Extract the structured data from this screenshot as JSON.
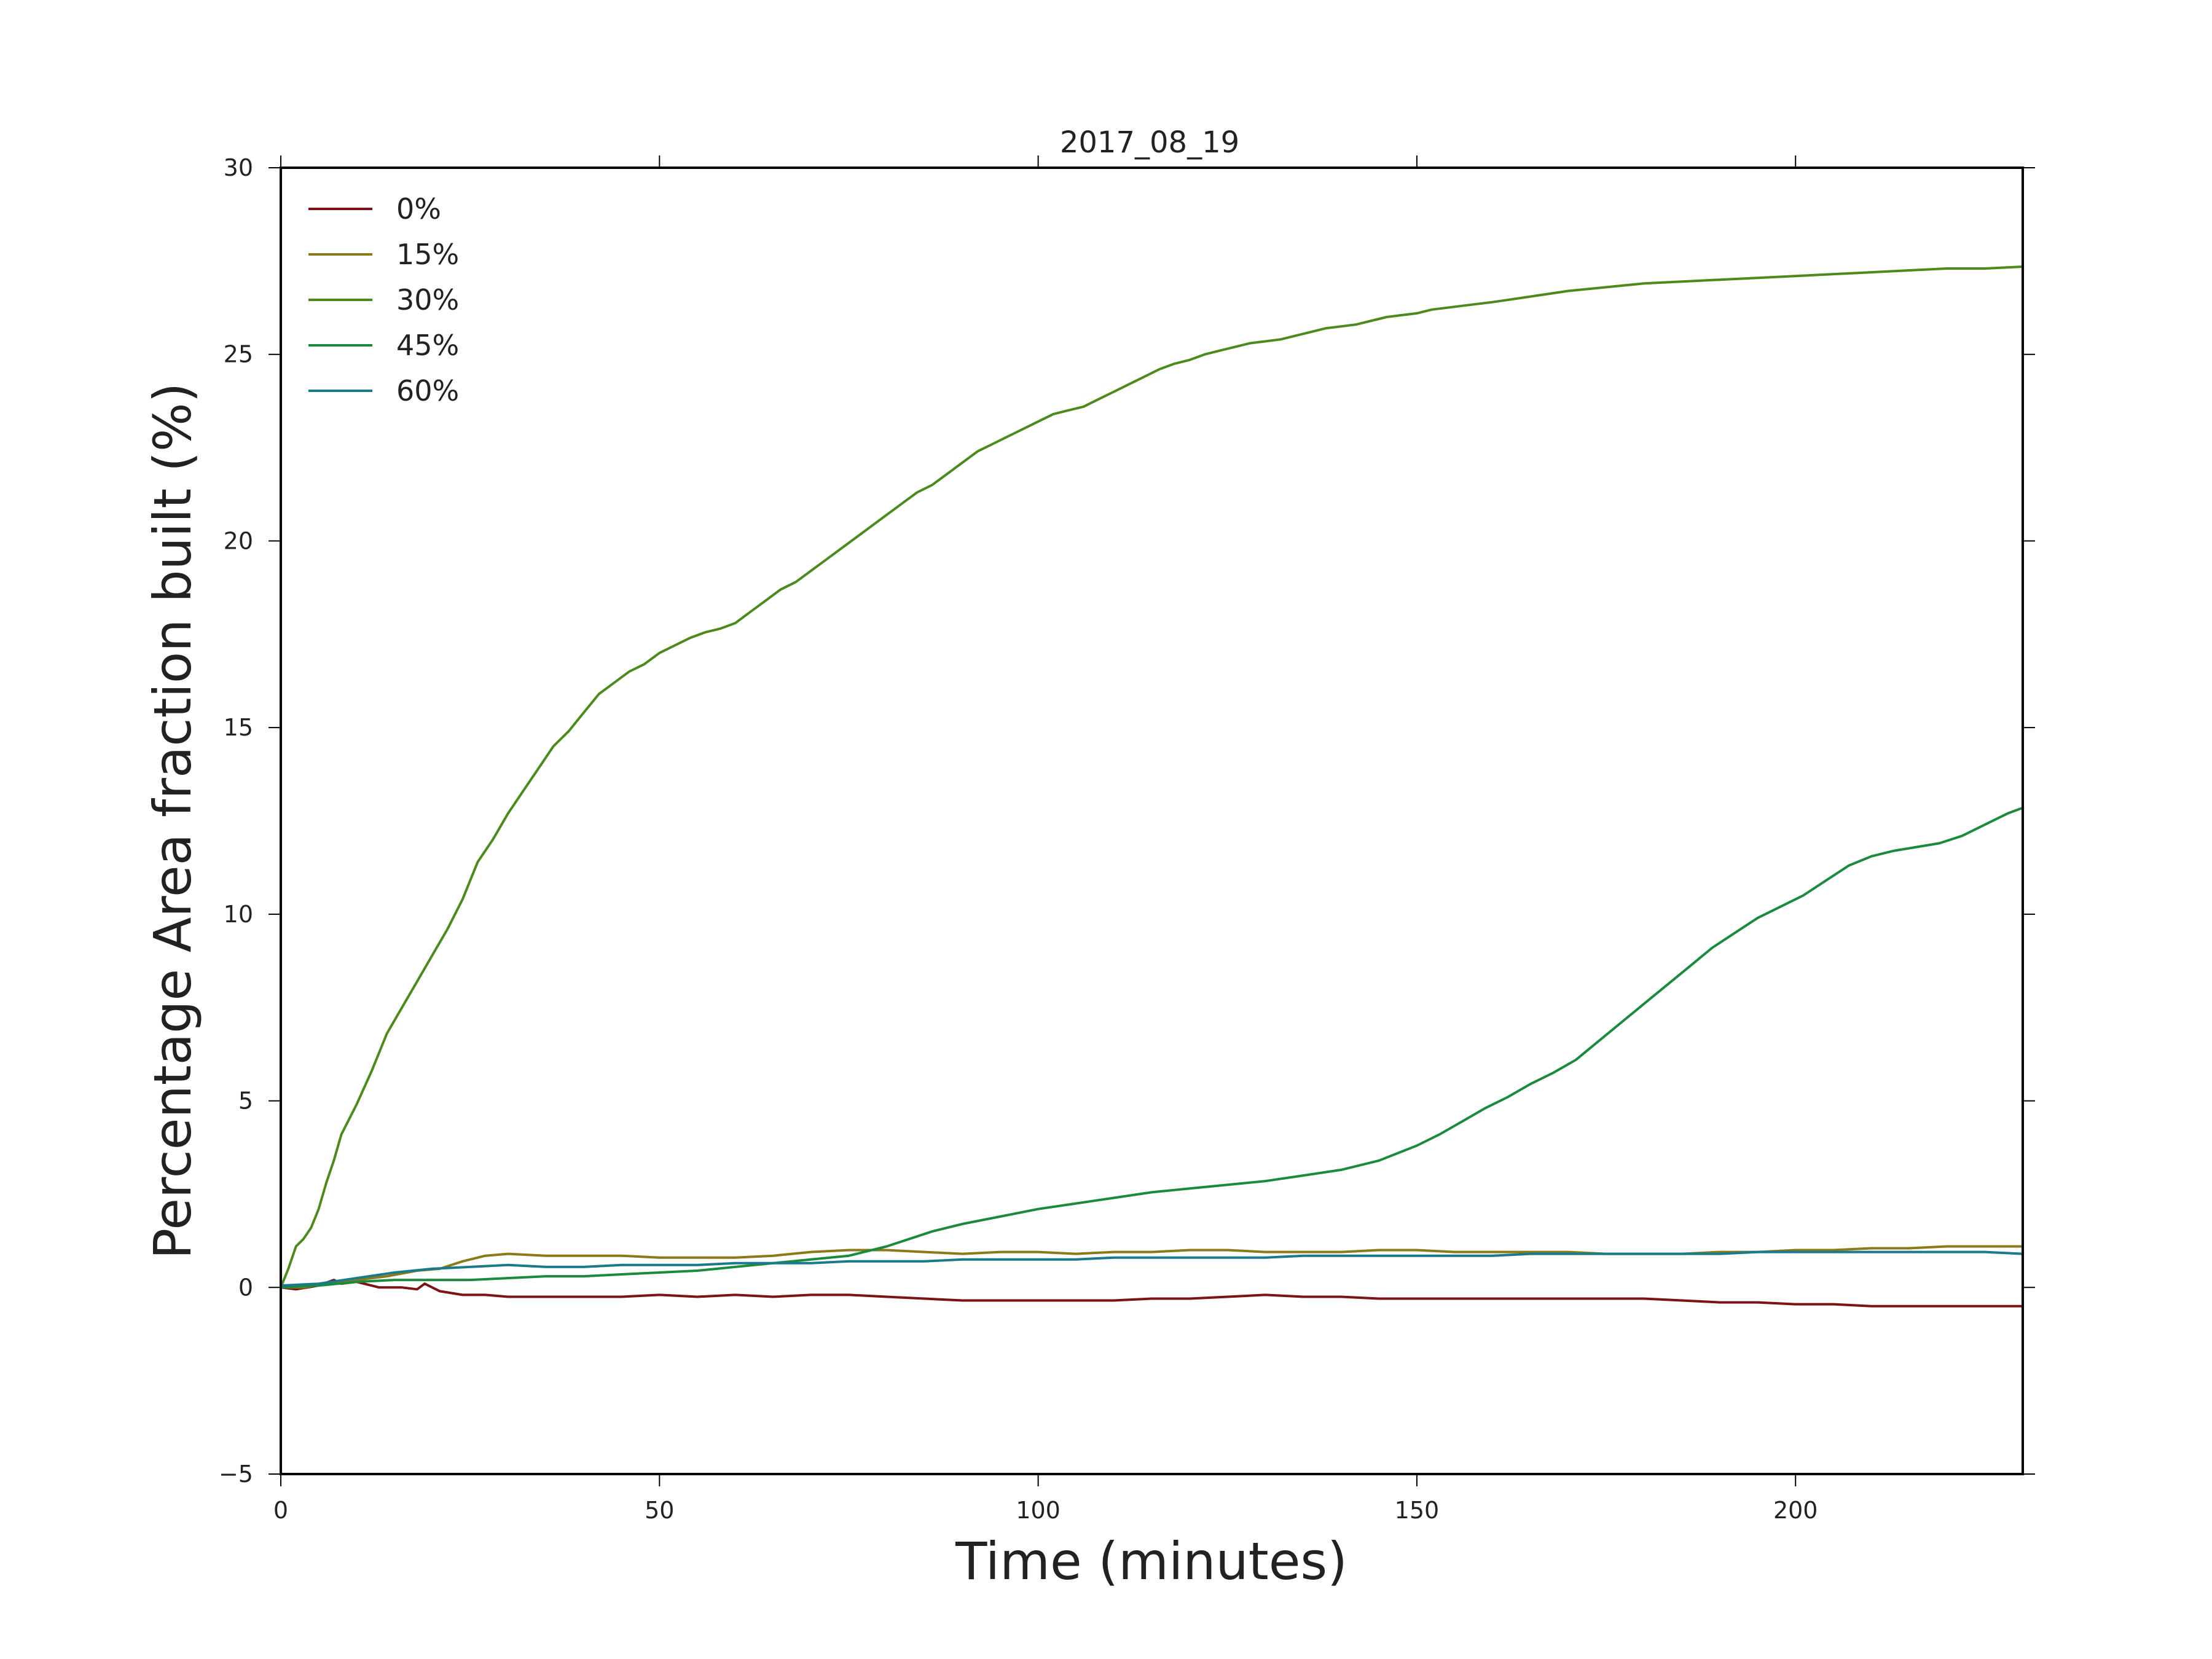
{
  "chart_data": {
    "type": "line",
    "title": "2017_08_19",
    "xlabel": "Time (minutes)",
    "ylabel": "Percentage Area fraction built (%)",
    "xlim": [
      0,
      230
    ],
    "ylim": [
      -5,
      30
    ],
    "xticks": [
      0,
      50,
      100,
      150,
      200
    ],
    "yticks": [
      -5,
      0,
      5,
      10,
      15,
      20,
      25,
      30
    ],
    "ytick_labels": [
      "−5",
      "0",
      "5",
      "10",
      "15",
      "20",
      "25",
      "30"
    ],
    "grid": false,
    "legend_position": "top-left",
    "series": [
      {
        "name": "0%",
        "color": "#7a1417",
        "points": [
          [
            0,
            0
          ],
          [
            2,
            -0.05
          ],
          [
            5,
            0.05
          ],
          [
            7,
            0.2
          ],
          [
            8,
            0.1
          ],
          [
            10,
            0.15
          ],
          [
            13,
            0
          ],
          [
            16,
            0
          ],
          [
            18,
            -0.05
          ],
          [
            19,
            0.1
          ],
          [
            21,
            -0.1
          ],
          [
            24,
            -0.2
          ],
          [
            27,
            -0.2
          ],
          [
            30,
            -0.25
          ],
          [
            35,
            -0.25
          ],
          [
            40,
            -0.25
          ],
          [
            45,
            -0.25
          ],
          [
            50,
            -0.2
          ],
          [
            55,
            -0.25
          ],
          [
            60,
            -0.2
          ],
          [
            65,
            -0.25
          ],
          [
            70,
            -0.2
          ],
          [
            75,
            -0.2
          ],
          [
            80,
            -0.25
          ],
          [
            85,
            -0.3
          ],
          [
            90,
            -0.35
          ],
          [
            95,
            -0.35
          ],
          [
            100,
            -0.35
          ],
          [
            105,
            -0.35
          ],
          [
            110,
            -0.35
          ],
          [
            115,
            -0.3
          ],
          [
            120,
            -0.3
          ],
          [
            125,
            -0.25
          ],
          [
            130,
            -0.2
          ],
          [
            135,
            -0.25
          ],
          [
            140,
            -0.25
          ],
          [
            145,
            -0.3
          ],
          [
            150,
            -0.3
          ],
          [
            155,
            -0.3
          ],
          [
            160,
            -0.3
          ],
          [
            165,
            -0.3
          ],
          [
            170,
            -0.3
          ],
          [
            175,
            -0.3
          ],
          [
            180,
            -0.3
          ],
          [
            185,
            -0.35
          ],
          [
            190,
            -0.4
          ],
          [
            195,
            -0.4
          ],
          [
            200,
            -0.45
          ],
          [
            205,
            -0.45
          ],
          [
            210,
            -0.5
          ],
          [
            215,
            -0.5
          ],
          [
            220,
            -0.5
          ],
          [
            225,
            -0.5
          ],
          [
            230,
            -0.5
          ]
        ]
      },
      {
        "name": "15%",
        "color": "#8a7a18",
        "points": [
          [
            0,
            0
          ],
          [
            3,
            0.0
          ],
          [
            6,
            0.1
          ],
          [
            10,
            0.2
          ],
          [
            14,
            0.3
          ],
          [
            18,
            0.45
          ],
          [
            21,
            0.5
          ],
          [
            24,
            0.7
          ],
          [
            27,
            0.85
          ],
          [
            30,
            0.9
          ],
          [
            35,
            0.85
          ],
          [
            40,
            0.85
          ],
          [
            45,
            0.85
          ],
          [
            50,
            0.8
          ],
          [
            55,
            0.8
          ],
          [
            60,
            0.8
          ],
          [
            65,
            0.85
          ],
          [
            70,
            0.95
          ],
          [
            75,
            1.0
          ],
          [
            80,
            1.0
          ],
          [
            85,
            0.95
          ],
          [
            90,
            0.9
          ],
          [
            95,
            0.95
          ],
          [
            100,
            0.95
          ],
          [
            105,
            0.9
          ],
          [
            110,
            0.95
          ],
          [
            115,
            0.95
          ],
          [
            120,
            1.0
          ],
          [
            125,
            1.0
          ],
          [
            130,
            0.95
          ],
          [
            135,
            0.95
          ],
          [
            140,
            0.95
          ],
          [
            145,
            1.0
          ],
          [
            150,
            1.0
          ],
          [
            155,
            0.95
          ],
          [
            160,
            0.95
          ],
          [
            165,
            0.95
          ],
          [
            170,
            0.95
          ],
          [
            175,
            0.9
          ],
          [
            180,
            0.9
          ],
          [
            185,
            0.9
          ],
          [
            190,
            0.95
          ],
          [
            195,
            0.95
          ],
          [
            200,
            1.0
          ],
          [
            205,
            1.0
          ],
          [
            210,
            1.05
          ],
          [
            215,
            1.05
          ],
          [
            220,
            1.1
          ],
          [
            225,
            1.1
          ],
          [
            230,
            1.1
          ]
        ]
      },
      {
        "name": "30%",
        "color": "#4b8a1c",
        "points": [
          [
            0,
            0
          ],
          [
            1,
            0.5
          ],
          [
            2,
            1.1
          ],
          [
            3,
            1.3
          ],
          [
            4,
            1.6
          ],
          [
            5,
            2.1
          ],
          [
            6,
            2.8
          ],
          [
            7,
            3.4
          ],
          [
            8,
            4.1
          ],
          [
            10,
            4.9
          ],
          [
            12,
            5.8
          ],
          [
            14,
            6.8
          ],
          [
            16,
            7.5
          ],
          [
            18,
            8.2
          ],
          [
            20,
            8.9
          ],
          [
            22,
            9.6
          ],
          [
            24,
            10.4
          ],
          [
            26,
            11.4
          ],
          [
            28,
            12.0
          ],
          [
            30,
            12.7
          ],
          [
            32,
            13.3
          ],
          [
            34,
            13.9
          ],
          [
            36,
            14.5
          ],
          [
            38,
            14.9
          ],
          [
            40,
            15.4
          ],
          [
            42,
            15.9
          ],
          [
            44,
            16.2
          ],
          [
            46,
            16.5
          ],
          [
            48,
            16.7
          ],
          [
            50,
            17.0
          ],
          [
            52,
            17.2
          ],
          [
            54,
            17.4
          ],
          [
            56,
            17.55
          ],
          [
            58,
            17.65
          ],
          [
            60,
            17.8
          ],
          [
            62,
            18.1
          ],
          [
            64,
            18.4
          ],
          [
            66,
            18.7
          ],
          [
            68,
            18.9
          ],
          [
            70,
            19.2
          ],
          [
            72,
            19.5
          ],
          [
            74,
            19.8
          ],
          [
            76,
            20.1
          ],
          [
            78,
            20.4
          ],
          [
            80,
            20.7
          ],
          [
            82,
            21.0
          ],
          [
            84,
            21.3
          ],
          [
            86,
            21.5
          ],
          [
            88,
            21.8
          ],
          [
            90,
            22.1
          ],
          [
            92,
            22.4
          ],
          [
            94,
            22.6
          ],
          [
            96,
            22.8
          ],
          [
            98,
            23.0
          ],
          [
            100,
            23.2
          ],
          [
            102,
            23.4
          ],
          [
            104,
            23.5
          ],
          [
            106,
            23.6
          ],
          [
            108,
            23.8
          ],
          [
            110,
            24.0
          ],
          [
            112,
            24.2
          ],
          [
            114,
            24.4
          ],
          [
            116,
            24.6
          ],
          [
            118,
            24.75
          ],
          [
            120,
            24.85
          ],
          [
            122,
            25.0
          ],
          [
            124,
            25.1
          ],
          [
            126,
            25.2
          ],
          [
            128,
            25.3
          ],
          [
            130,
            25.35
          ],
          [
            132,
            25.4
          ],
          [
            134,
            25.5
          ],
          [
            136,
            25.6
          ],
          [
            138,
            25.7
          ],
          [
            140,
            25.75
          ],
          [
            142,
            25.8
          ],
          [
            144,
            25.9
          ],
          [
            146,
            26.0
          ],
          [
            148,
            26.05
          ],
          [
            150,
            26.1
          ],
          [
            152,
            26.2
          ],
          [
            154,
            26.25
          ],
          [
            156,
            26.3
          ],
          [
            158,
            26.35
          ],
          [
            160,
            26.4
          ],
          [
            165,
            26.55
          ],
          [
            170,
            26.7
          ],
          [
            175,
            26.8
          ],
          [
            180,
            26.9
          ],
          [
            185,
            26.95
          ],
          [
            190,
            27.0
          ],
          [
            195,
            27.05
          ],
          [
            200,
            27.1
          ],
          [
            205,
            27.15
          ],
          [
            210,
            27.2
          ],
          [
            215,
            27.25
          ],
          [
            220,
            27.3
          ],
          [
            225,
            27.3
          ],
          [
            230,
            27.35
          ]
        ]
      },
      {
        "name": "45%",
        "color": "#1a8a3c",
        "points": [
          [
            0,
            0
          ],
          [
            5,
            0.05
          ],
          [
            10,
            0.15
          ],
          [
            15,
            0.2
          ],
          [
            20,
            0.2
          ],
          [
            25,
            0.2
          ],
          [
            30,
            0.25
          ],
          [
            35,
            0.3
          ],
          [
            40,
            0.3
          ],
          [
            45,
            0.35
          ],
          [
            50,
            0.4
          ],
          [
            55,
            0.45
          ],
          [
            60,
            0.55
          ],
          [
            65,
            0.65
          ],
          [
            70,
            0.75
          ],
          [
            75,
            0.85
          ],
          [
            80,
            1.1
          ],
          [
            83,
            1.3
          ],
          [
            86,
            1.5
          ],
          [
            90,
            1.7
          ],
          [
            95,
            1.9
          ],
          [
            100,
            2.1
          ],
          [
            105,
            2.25
          ],
          [
            110,
            2.4
          ],
          [
            115,
            2.55
          ],
          [
            120,
            2.65
          ],
          [
            125,
            2.75
          ],
          [
            130,
            2.85
          ],
          [
            135,
            3.0
          ],
          [
            140,
            3.15
          ],
          [
            145,
            3.4
          ],
          [
            150,
            3.8
          ],
          [
            153,
            4.1
          ],
          [
            156,
            4.45
          ],
          [
            159,
            4.8
          ],
          [
            162,
            5.1
          ],
          [
            165,
            5.45
          ],
          [
            168,
            5.75
          ],
          [
            171,
            6.1
          ],
          [
            174,
            6.6
          ],
          [
            177,
            7.1
          ],
          [
            180,
            7.6
          ],
          [
            183,
            8.1
          ],
          [
            186,
            8.6
          ],
          [
            189,
            9.1
          ],
          [
            192,
            9.5
          ],
          [
            195,
            9.9
          ],
          [
            198,
            10.2
          ],
          [
            201,
            10.5
          ],
          [
            204,
            10.9
          ],
          [
            207,
            11.3
          ],
          [
            210,
            11.55
          ],
          [
            213,
            11.7
          ],
          [
            216,
            11.8
          ],
          [
            219,
            11.9
          ],
          [
            222,
            12.1
          ],
          [
            225,
            12.4
          ],
          [
            228,
            12.7
          ],
          [
            230,
            12.85
          ]
        ]
      },
      {
        "name": "60%",
        "color": "#1a7a8c",
        "points": [
          [
            0,
            0.05
          ],
          [
            5,
            0.1
          ],
          [
            10,
            0.25
          ],
          [
            15,
            0.4
          ],
          [
            20,
            0.5
          ],
          [
            25,
            0.55
          ],
          [
            30,
            0.6
          ],
          [
            35,
            0.55
          ],
          [
            40,
            0.55
          ],
          [
            45,
            0.6
          ],
          [
            50,
            0.6
          ],
          [
            55,
            0.6
          ],
          [
            60,
            0.65
          ],
          [
            65,
            0.65
          ],
          [
            70,
            0.65
          ],
          [
            75,
            0.7
          ],
          [
            80,
            0.7
          ],
          [
            85,
            0.7
          ],
          [
            90,
            0.75
          ],
          [
            95,
            0.75
          ],
          [
            100,
            0.75
          ],
          [
            105,
            0.75
          ],
          [
            110,
            0.8
          ],
          [
            115,
            0.8
          ],
          [
            120,
            0.8
          ],
          [
            125,
            0.8
          ],
          [
            130,
            0.8
          ],
          [
            135,
            0.85
          ],
          [
            140,
            0.85
          ],
          [
            145,
            0.85
          ],
          [
            150,
            0.85
          ],
          [
            155,
            0.85
          ],
          [
            160,
            0.85
          ],
          [
            165,
            0.9
          ],
          [
            170,
            0.9
          ],
          [
            175,
            0.9
          ],
          [
            180,
            0.9
          ],
          [
            185,
            0.9
          ],
          [
            190,
            0.9
          ],
          [
            195,
            0.95
          ],
          [
            200,
            0.95
          ],
          [
            205,
            0.95
          ],
          [
            210,
            0.95
          ],
          [
            215,
            0.95
          ],
          [
            220,
            0.95
          ],
          [
            225,
            0.95
          ],
          [
            230,
            0.9
          ]
        ]
      }
    ]
  }
}
